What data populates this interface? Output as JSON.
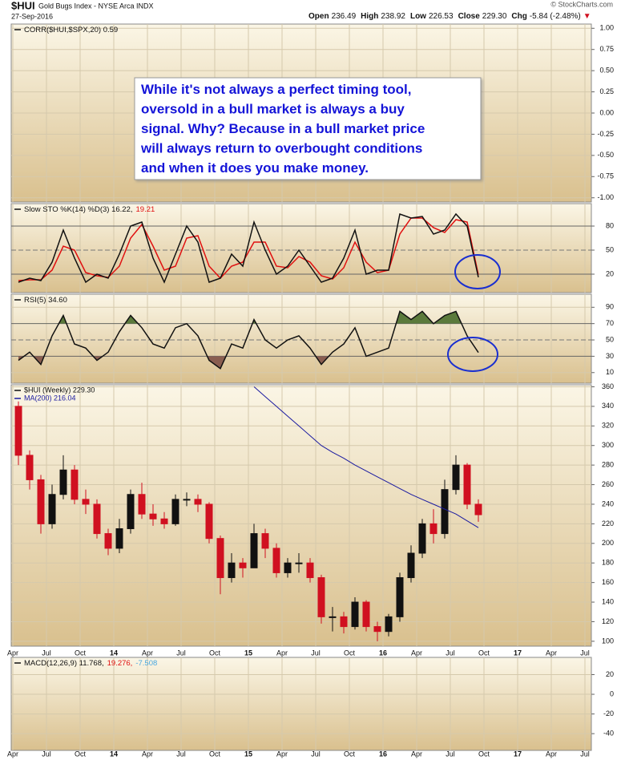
{
  "header": {
    "symbol": "$HUI",
    "name": "Gold Bugs Index - NYSE Arca INDX",
    "date": "27-Sep-2016",
    "credit": "© StockCharts.com",
    "quote": [
      {
        "label": "Open",
        "value": "236.49"
      },
      {
        "label": "High",
        "value": "238.92"
      },
      {
        "label": "Low",
        "value": "226.53"
      },
      {
        "label": "Close",
        "value": "229.30"
      },
      {
        "label": "Chg",
        "value": "-5.84 (-2.48%)"
      }
    ],
    "change_arrow": "▼"
  },
  "chart_data": [
    {
      "type": "line",
      "legend": [
        {
          "text": "CORR($HUI,$SPX,20) 0.59",
          "color": "#111111"
        }
      ],
      "ylim": [
        -1.05,
        1.05
      ],
      "yticks": [
        {
          "value": 1,
          "label": "1.00"
        },
        {
          "value": 0.75,
          "label": "0.75"
        },
        {
          "value": 0.5,
          "label": "0.50"
        },
        {
          "value": 0.25,
          "label": "0.25"
        },
        {
          "value": 0,
          "label": "0.00"
        },
        {
          "value": -0.25,
          "label": "-0.25"
        },
        {
          "value": -0.5,
          "label": "-0.50"
        },
        {
          "value": -0.75,
          "label": "-0.75"
        },
        {
          "value": -1,
          "label": "-1.00"
        }
      ],
      "annotation": [
        "While it's not always a perfect timing tool,",
        "oversold in a bull market is always a buy",
        "signal. Why? Because in a bull market price",
        "will always return to overbought conditions",
        "and when it does you make money."
      ]
    },
    {
      "type": "oscillator",
      "legend": [
        {
          "text": "Slow STO %K(14) %D(3) 16.22,",
          "color": "#111111"
        },
        {
          "text": "19.21",
          "color": "#e01010"
        }
      ],
      "x": [
        "2013-04",
        "2013-05",
        "2013-06",
        "2013-07",
        "2013-08",
        "2013-09",
        "2013-10",
        "2013-11",
        "2013-12",
        "2014-01",
        "2014-02",
        "2014-03",
        "2014-04",
        "2014-05",
        "2014-06",
        "2014-07",
        "2014-08",
        "2014-09",
        "2014-10",
        "2014-11",
        "2014-12",
        "2015-01",
        "2015-02",
        "2015-03",
        "2015-04",
        "2015-05",
        "2015-06",
        "2015-07",
        "2015-08",
        "2015-09",
        "2015-10",
        "2015-11",
        "2015-12",
        "2016-01",
        "2016-02",
        "2016-03",
        "2016-04",
        "2016-05",
        "2016-06",
        "2016-07",
        "2016-08",
        "2016-09"
      ],
      "series": [
        {
          "color": "#e01010",
          "values": [
            12,
            13,
            13,
            25,
            55,
            50,
            22,
            18,
            16,
            30,
            65,
            82,
            55,
            25,
            30,
            65,
            68,
            30,
            15,
            30,
            35,
            60,
            60,
            30,
            28,
            42,
            35,
            18,
            14,
            28,
            60,
            35,
            22,
            25,
            70,
            90,
            90,
            78,
            72,
            88,
            85,
            19.21
          ]
        },
        {
          "color": "#111111",
          "values": [
            10,
            15,
            12,
            35,
            75,
            40,
            10,
            20,
            15,
            45,
            80,
            85,
            40,
            10,
            45,
            80,
            60,
            10,
            15,
            45,
            30,
            85,
            50,
            20,
            30,
            50,
            30,
            10,
            15,
            40,
            75,
            20,
            25,
            25,
            95,
            90,
            92,
            70,
            75,
            95,
            80,
            16.22
          ]
        }
      ],
      "ylim": [
        -3,
        108
      ],
      "yticks": [
        20,
        50,
        80
      ],
      "fill": false
    },
    {
      "type": "oscillator",
      "legend": [
        {
          "text": "RSI(5) 34.60",
          "color": "#111111"
        }
      ],
      "x": [
        "2013-04",
        "2013-05",
        "2013-06",
        "2013-07",
        "2013-08",
        "2013-09",
        "2013-10",
        "2013-11",
        "2013-12",
        "2014-01",
        "2014-02",
        "2014-03",
        "2014-04",
        "2014-05",
        "2014-06",
        "2014-07",
        "2014-08",
        "2014-09",
        "2014-10",
        "2014-11",
        "2014-12",
        "2015-01",
        "2015-02",
        "2015-03",
        "2015-04",
        "2015-05",
        "2015-06",
        "2015-07",
        "2015-08",
        "2015-09",
        "2015-10",
        "2015-11",
        "2015-12",
        "2016-01",
        "2016-02",
        "2016-03",
        "2016-04",
        "2016-05",
        "2016-06",
        "2016-07",
        "2016-08",
        "2016-09"
      ],
      "series": [
        {
          "color": "#111111",
          "values": [
            25,
            35,
            20,
            55,
            80,
            45,
            40,
            25,
            35,
            60,
            80,
            65,
            45,
            40,
            65,
            70,
            55,
            25,
            15,
            45,
            40,
            75,
            50,
            40,
            50,
            55,
            40,
            20,
            35,
            45,
            65,
            30,
            35,
            40,
            85,
            75,
            85,
            70,
            80,
            85,
            55,
            34.6
          ]
        }
      ],
      "ylim": [
        -3,
        106
      ],
      "yticks": [
        10,
        30,
        50,
        70,
        90
      ],
      "fill": true,
      "fill_colors": [
        "#5b7a3c",
        "#8a5e50"
      ]
    },
    {
      "type": "candlestick",
      "legend": [
        {
          "text": "$HUI (Weekly) 229.30",
          "color": "#111111"
        },
        {
          "text": "MA(200) 216.04",
          "color": "#1a1aa0"
        }
      ],
      "x": [
        "2013-04",
        "2013-05",
        "2013-06",
        "2013-07",
        "2013-08",
        "2013-09",
        "2013-10",
        "2013-11",
        "2013-12",
        "2014-01",
        "2014-02",
        "2014-03",
        "2014-04",
        "2014-05",
        "2014-06",
        "2014-07",
        "2014-08",
        "2014-09",
        "2014-10",
        "2014-11",
        "2014-12",
        "2015-01",
        "2015-02",
        "2015-03",
        "2015-04",
        "2015-05",
        "2015-06",
        "2015-07",
        "2015-08",
        "2015-09",
        "2015-10",
        "2015-11",
        "2015-12",
        "2016-01",
        "2016-02",
        "2016-03",
        "2016-04",
        "2016-05",
        "2016-06",
        "2016-07",
        "2016-08",
        "2016-09"
      ],
      "open": [
        340,
        290,
        265,
        220,
        250,
        275,
        245,
        240,
        210,
        195,
        215,
        250,
        230,
        225,
        220,
        245,
        245,
        240,
        205,
        165,
        180,
        175,
        210,
        195,
        170,
        180,
        180,
        165,
        125,
        125,
        115,
        140,
        115,
        110,
        125,
        165,
        190,
        220,
        210,
        255,
        280,
        240
      ],
      "high": [
        345,
        295,
        270,
        260,
        290,
        280,
        255,
        245,
        215,
        225,
        255,
        262,
        240,
        232,
        250,
        252,
        250,
        242,
        208,
        190,
        185,
        220,
        215,
        200,
        185,
        190,
        185,
        168,
        135,
        130,
        145,
        142,
        120,
        128,
        170,
        198,
        225,
        235,
        265,
        290,
        282,
        245
      ],
      "low": [
        280,
        255,
        210,
        215,
        245,
        240,
        230,
        205,
        188,
        190,
        210,
        225,
        218,
        215,
        218,
        238,
        232,
        200,
        148,
        160,
        165,
        175,
        185,
        165,
        165,
        170,
        160,
        118,
        110,
        108,
        112,
        110,
        100,
        105,
        120,
        160,
        185,
        200,
        205,
        250,
        235,
        222
      ],
      "close": [
        290,
        265,
        220,
        250,
        275,
        245,
        240,
        210,
        195,
        215,
        250,
        230,
        225,
        220,
        245,
        245,
        240,
        205,
        165,
        180,
        175,
        210,
        195,
        170,
        180,
        180,
        165,
        125,
        125,
        115,
        140,
        115,
        110,
        125,
        165,
        190,
        220,
        210,
        255,
        280,
        240,
        229.3
      ],
      "up_color": "#111111",
      "down_color": "#d01020",
      "series": [
        {
          "name": "MA(200)",
          "color": "#1a1aa0",
          "values": [
            null,
            null,
            null,
            null,
            null,
            null,
            null,
            null,
            null,
            null,
            null,
            null,
            null,
            null,
            null,
            null,
            null,
            null,
            null,
            null,
            null,
            360,
            350,
            340,
            330,
            320,
            310,
            300,
            293,
            287,
            280,
            274,
            268,
            262,
            256,
            250,
            245,
            240,
            235,
            230,
            223,
            216.04
          ]
        }
      ],
      "ylim": [
        95,
        362
      ],
      "yticks": [
        100,
        120,
        140,
        160,
        180,
        200,
        220,
        240,
        260,
        280,
        300,
        320,
        340,
        360
      ],
      "xlim": [
        "2013-04",
        "2017-07"
      ],
      "xticks": [
        {
          "value": "2013-04",
          "label": "Apr"
        },
        {
          "value": "2013-07",
          "label": "Jul"
        },
        {
          "value": "2013-10",
          "label": "Oct"
        },
        {
          "value": "2014-01",
          "label": "14"
        },
        {
          "value": "2014-04",
          "label": "Apr"
        },
        {
          "value": "2014-07",
          "label": "Jul"
        },
        {
          "value": "2014-10",
          "label": "Oct"
        },
        {
          "value": "2015-01",
          "label": "15"
        },
        {
          "value": "2015-04",
          "label": "Apr"
        },
        {
          "value": "2015-07",
          "label": "Jul"
        },
        {
          "value": "2015-10",
          "label": "Oct"
        },
        {
          "value": "2016-01",
          "label": "16"
        },
        {
          "value": "2016-04",
          "label": "Apr"
        },
        {
          "value": "2016-07",
          "label": "Jul"
        },
        {
          "value": "2016-10",
          "label": "Oct"
        },
        {
          "value": "2017-01",
          "label": "17"
        },
        {
          "value": "2017-04",
          "label": "Apr"
        },
        {
          "value": "2017-07",
          "label": "Jul"
        }
      ]
    },
    {
      "type": "line",
      "legend": [
        {
          "text": "MACD(12,26,9) 11.768,",
          "color": "#111111"
        },
        {
          "text": "19.276,",
          "color": "#e01010"
        },
        {
          "text": "-7.508",
          "color": "#4aa8e0"
        }
      ],
      "ylim": [
        -57,
        37.5
      ],
      "yticks": [
        20,
        0,
        -20,
        -40
      ]
    }
  ]
}
